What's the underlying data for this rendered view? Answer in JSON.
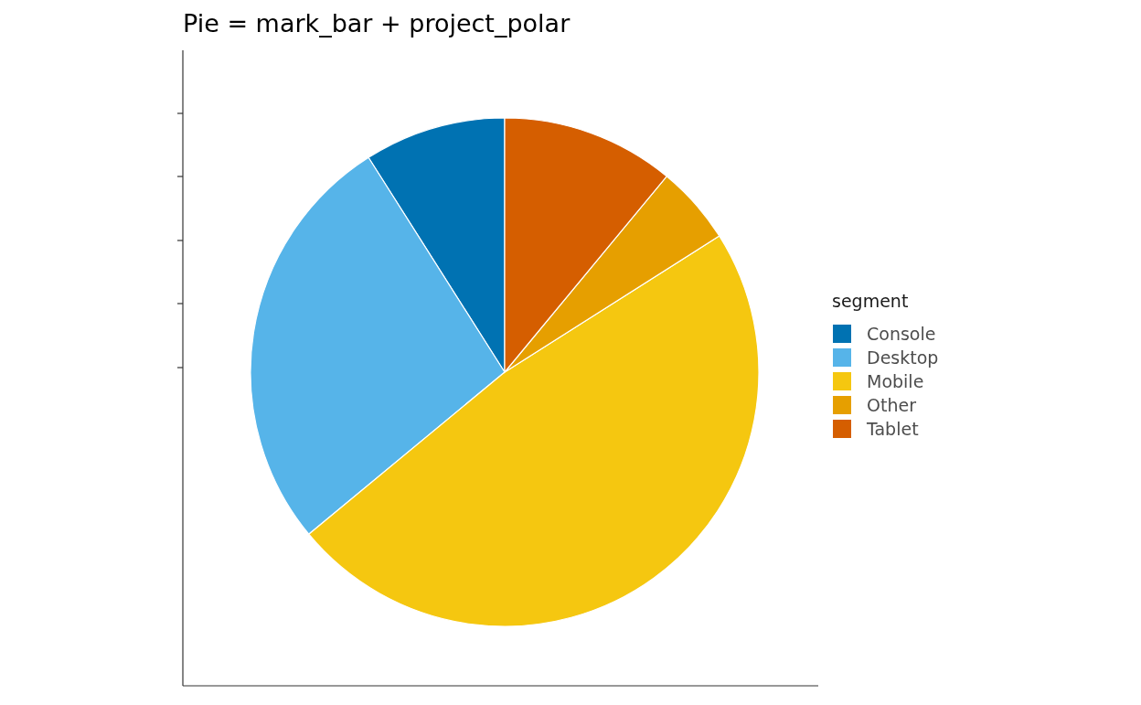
{
  "chart_data": {
    "type": "pie",
    "title": "Pie = mark_bar + project_polar",
    "legend_title": "segment",
    "legend": "right",
    "categories": [
      "Console",
      "Desktop",
      "Mobile",
      "Other",
      "Tablet"
    ],
    "values": [
      9,
      27,
      48,
      5,
      11
    ],
    "colors": [
      "#0072b2",
      "#56b4e9",
      "#f5c710",
      "#e69f00",
      "#d55e00"
    ]
  }
}
